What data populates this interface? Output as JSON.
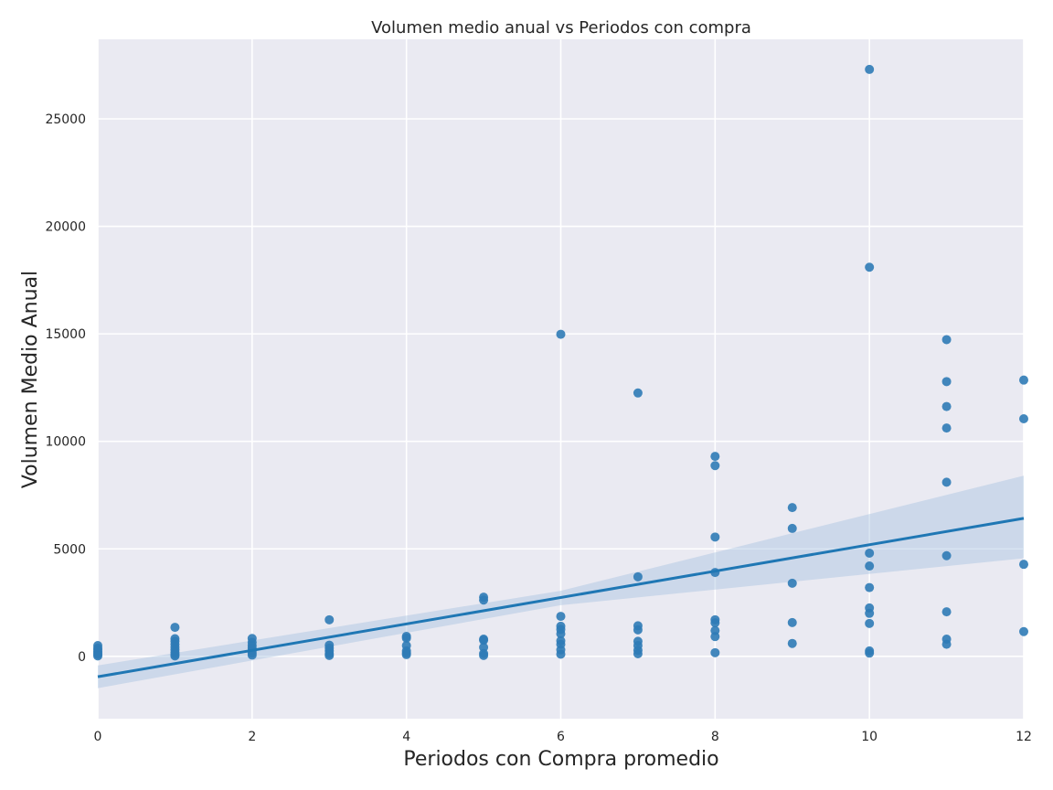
{
  "chart_data": {
    "type": "scatter",
    "title": "Volumen medio anual vs Periodos con compra",
    "xlabel": "Periodos con Compra promedio",
    "ylabel": "Volumen Medio Anual",
    "xlim": [
      0,
      12
    ],
    "ylim": [
      -2900,
      28700
    ],
    "xticks": [
      0,
      2,
      4,
      6,
      8,
      10,
      12
    ],
    "yticks": [
      0,
      5000,
      10000,
      15000,
      20000,
      25000
    ],
    "grid": true,
    "colors": {
      "background": "#eaeaf2",
      "grid": "#ffffff",
      "points": "#2f7bb6",
      "line": "#1f77b4",
      "band": "#a9c4e0"
    },
    "points": [
      {
        "x": 0,
        "y": 500
      },
      {
        "x": 0,
        "y": 380
      },
      {
        "x": 0,
        "y": 300
      },
      {
        "x": 0,
        "y": 220
      },
      {
        "x": 0,
        "y": 150
      },
      {
        "x": 0,
        "y": 80
      },
      {
        "x": 0,
        "y": 20
      },
      {
        "x": 1,
        "y": 1350
      },
      {
        "x": 1,
        "y": 820
      },
      {
        "x": 1,
        "y": 700
      },
      {
        "x": 1,
        "y": 560
      },
      {
        "x": 1,
        "y": 430
      },
      {
        "x": 1,
        "y": 300
      },
      {
        "x": 1,
        "y": 180
      },
      {
        "x": 1,
        "y": 80
      },
      {
        "x": 1,
        "y": 20
      },
      {
        "x": 2,
        "y": 830
      },
      {
        "x": 2,
        "y": 650
      },
      {
        "x": 2,
        "y": 500
      },
      {
        "x": 2,
        "y": 380
      },
      {
        "x": 2,
        "y": 260
      },
      {
        "x": 2,
        "y": 150
      },
      {
        "x": 2,
        "y": 60
      },
      {
        "x": 3,
        "y": 1700
      },
      {
        "x": 3,
        "y": 520
      },
      {
        "x": 3,
        "y": 380
      },
      {
        "x": 3,
        "y": 250
      },
      {
        "x": 3,
        "y": 120
      },
      {
        "x": 3,
        "y": 40
      },
      {
        "x": 4,
        "y": 930
      },
      {
        "x": 4,
        "y": 850
      },
      {
        "x": 4,
        "y": 500
      },
      {
        "x": 4,
        "y": 250
      },
      {
        "x": 4,
        "y": 150
      },
      {
        "x": 4,
        "y": 80
      },
      {
        "x": 5,
        "y": 2750
      },
      {
        "x": 5,
        "y": 2620
      },
      {
        "x": 5,
        "y": 800
      },
      {
        "x": 5,
        "y": 750
      },
      {
        "x": 5,
        "y": 420
      },
      {
        "x": 5,
        "y": 130
      },
      {
        "x": 5,
        "y": 40
      },
      {
        "x": 6,
        "y": 14980
      },
      {
        "x": 6,
        "y": 1860
      },
      {
        "x": 6,
        "y": 1400
      },
      {
        "x": 6,
        "y": 1250
      },
      {
        "x": 6,
        "y": 1050
      },
      {
        "x": 6,
        "y": 720
      },
      {
        "x": 6,
        "y": 560
      },
      {
        "x": 6,
        "y": 300
      },
      {
        "x": 6,
        "y": 100
      },
      {
        "x": 7,
        "y": 12250
      },
      {
        "x": 7,
        "y": 3700
      },
      {
        "x": 7,
        "y": 1420
      },
      {
        "x": 7,
        "y": 1230
      },
      {
        "x": 7,
        "y": 700
      },
      {
        "x": 7,
        "y": 500
      },
      {
        "x": 7,
        "y": 280
      },
      {
        "x": 7,
        "y": 120
      },
      {
        "x": 8,
        "y": 9300
      },
      {
        "x": 8,
        "y": 8870
      },
      {
        "x": 8,
        "y": 5550
      },
      {
        "x": 8,
        "y": 3900
      },
      {
        "x": 8,
        "y": 1700
      },
      {
        "x": 8,
        "y": 1560
      },
      {
        "x": 8,
        "y": 1200
      },
      {
        "x": 8,
        "y": 920
      },
      {
        "x": 8,
        "y": 170
      },
      {
        "x": 9,
        "y": 6920
      },
      {
        "x": 9,
        "y": 5950
      },
      {
        "x": 9,
        "y": 3400
      },
      {
        "x": 9,
        "y": 1570
      },
      {
        "x": 9,
        "y": 600
      },
      {
        "x": 10,
        "y": 27300
      },
      {
        "x": 10,
        "y": 18100
      },
      {
        "x": 10,
        "y": 4800
      },
      {
        "x": 10,
        "y": 4200
      },
      {
        "x": 10,
        "y": 3200
      },
      {
        "x": 10,
        "y": 2250
      },
      {
        "x": 10,
        "y": 2000
      },
      {
        "x": 10,
        "y": 1530
      },
      {
        "x": 10,
        "y": 250
      },
      {
        "x": 10,
        "y": 150
      },
      {
        "x": 11,
        "y": 14730
      },
      {
        "x": 11,
        "y": 12780
      },
      {
        "x": 11,
        "y": 11620
      },
      {
        "x": 11,
        "y": 10620
      },
      {
        "x": 11,
        "y": 8100
      },
      {
        "x": 11,
        "y": 4680
      },
      {
        "x": 11,
        "y": 2070
      },
      {
        "x": 11,
        "y": 800
      },
      {
        "x": 11,
        "y": 560
      },
      {
        "x": 12,
        "y": 12850
      },
      {
        "x": 12,
        "y": 11050
      },
      {
        "x": 12,
        "y": 4280
      },
      {
        "x": 12,
        "y": 1150
      }
    ],
    "regression": {
      "x": [
        0,
        12
      ],
      "y": [
        -950,
        6420
      ],
      "ci_upper": [
        -420,
        8400
      ],
      "ci_lower": [
        -1480,
        4560
      ],
      "ci_mid": {
        "x": 6,
        "upper": 3050,
        "lower": 2380
      }
    }
  }
}
